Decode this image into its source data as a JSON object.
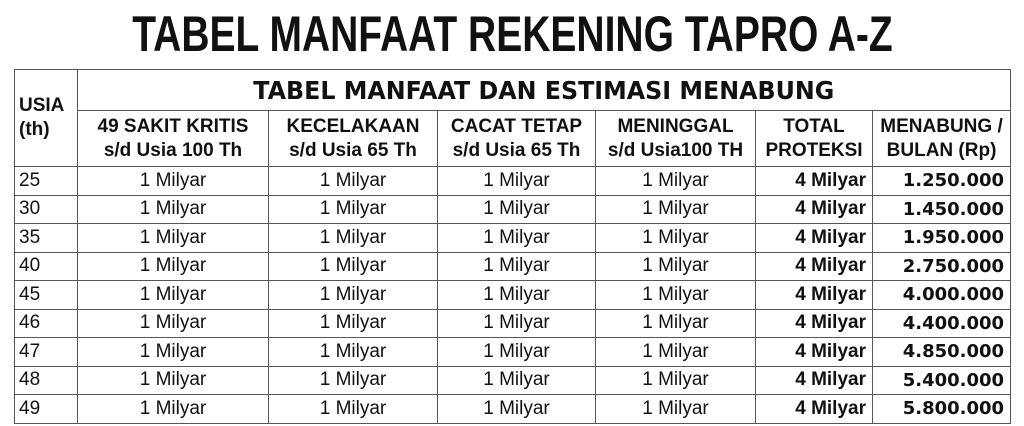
{
  "title": "TABEL MANFAAT REKENING TAPRO A-Z",
  "table": {
    "band_title": "TABEL MANFAAT DAN ESTIMASI MENABUNG",
    "age_header": [
      "USIA",
      "(th)"
    ],
    "headers": [
      [
        "49 SAKIT KRITIS",
        "s/d Usia 100 Th"
      ],
      [
        "KECELAKAAN",
        "s/d Usia 65 Th"
      ],
      [
        "CACAT TETAP",
        "s/d Usia 65 Th"
      ],
      [
        "MENINGGAL",
        "s/d Usia100 TH"
      ],
      [
        "TOTAL",
        "PROTEKSI"
      ],
      [
        "MENABUNG /",
        "BULAN (Rp)"
      ]
    ],
    "rows": [
      [
        "25",
        "1 Milyar",
        "1 Milyar",
        "1 Milyar",
        "1 Milyar",
        "4  Milyar",
        "1.250.000"
      ],
      [
        "30",
        "1 Milyar",
        "1 Milyar",
        "1 Milyar",
        "1 Milyar",
        "4  Milyar",
        "1.450.000"
      ],
      [
        "35",
        "1 Milyar",
        "1 Milyar",
        "1 Milyar",
        "1 Milyar",
        "4  Milyar",
        "1.950.000"
      ],
      [
        "40",
        "1 Milyar",
        "1 Milyar",
        "1 Milyar",
        "1 Milyar",
        "4  Milyar",
        "2.750.000"
      ],
      [
        "45",
        "1 Milyar",
        "1 Milyar",
        "1 Milyar",
        "1 Milyar",
        "4  Milyar",
        "4.000.000"
      ],
      [
        "46",
        "1 Milyar",
        "1 Milyar",
        "1 Milyar",
        "1 Milyar",
        "4  Milyar",
        "4.400.000"
      ],
      [
        "47",
        "1 Milyar",
        "1 Milyar",
        "1 Milyar",
        "1 Milyar",
        "4  Milyar",
        "4.850.000"
      ],
      [
        "48",
        "1 Milyar",
        "1 Milyar",
        "1 Milyar",
        "1 Milyar",
        "4  Milyar",
        "5.400.000"
      ],
      [
        "49",
        "1 Milyar",
        "1 Milyar",
        "1 Milyar",
        "1 Milyar",
        "4  Milyar",
        "5.800.000"
      ]
    ]
  }
}
